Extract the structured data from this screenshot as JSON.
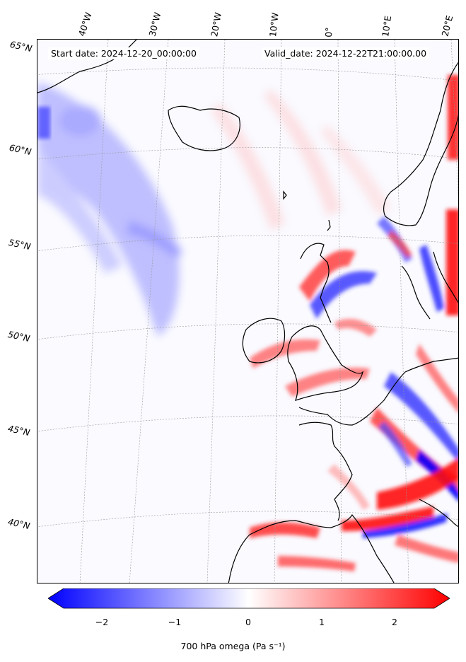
{
  "header": {
    "start_date": "Start date: 2024-12-20_00:00:00",
    "valid_date": "Valid_date: 2024-12-22T21:00:00.00"
  },
  "map": {
    "lon_labels": [
      "40°W",
      "30°W",
      "20°W",
      "10°W",
      "0°",
      "10°E",
      "20°E"
    ],
    "lat_labels": [
      "65°N",
      "60°N",
      "55°N",
      "50°N",
      "45°N",
      "40°N"
    ],
    "colors": {
      "negative": "#0000ff",
      "positive": "#ff0000",
      "neutral": "#ffffff",
      "coastline": "#000000"
    }
  },
  "colorbar": {
    "ticks": [
      "−2",
      "−1",
      "0",
      "1",
      "2"
    ],
    "range": [
      -2.5,
      2.5
    ],
    "label": "700 hPa omega (Pa s⁻¹)",
    "colormap": "bwr",
    "extend": "both"
  }
}
